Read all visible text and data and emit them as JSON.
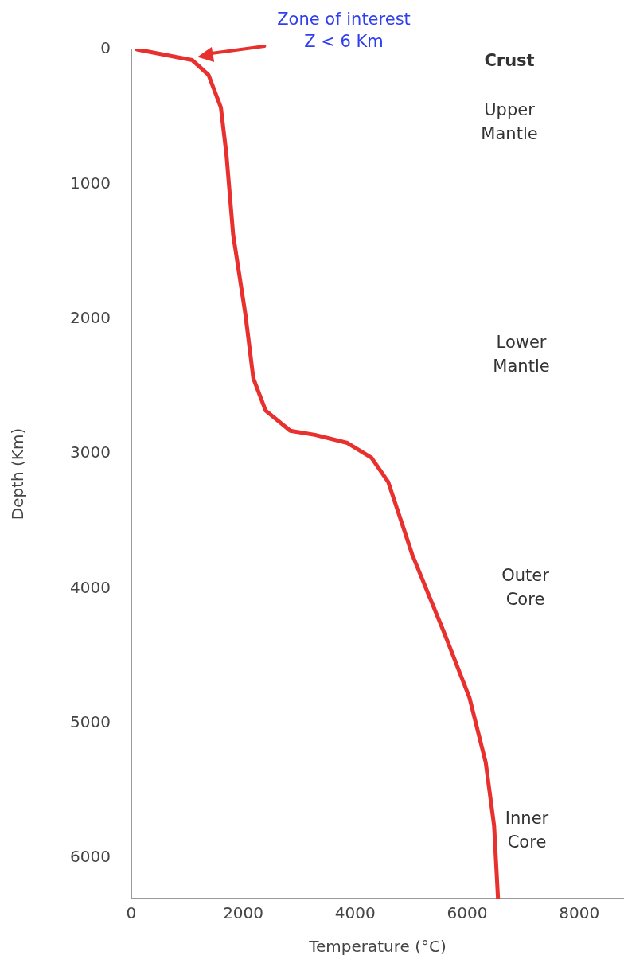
{
  "chart_data": {
    "type": "line",
    "xlabel": "Temperature (°C)",
    "ylabel": "Depth (Km)",
    "x": [
      100,
      1090,
      1380,
      1600,
      1700,
      1820,
      2040,
      2180,
      2400,
      2840,
      3280,
      3860,
      4290,
      4590,
      5020,
      5600,
      6040,
      6330,
      6480,
      6550
    ],
    "series": [
      {
        "color": "#e8302e",
        "values": [
          0,
          80,
          190,
          430,
          780,
          1375,
          1970,
          2440,
          2680,
          2830,
          2860,
          2920,
          3030,
          3210,
          3750,
          4340,
          4810,
          5290,
          5760,
          6300
        ]
      }
    ],
    "xlim": [
      0,
      8800
    ],
    "xticks": [
      0,
      2000,
      4000,
      6000,
      8000
    ],
    "ylim": [
      6300,
      0
    ],
    "yticks": [
      0,
      1000,
      2000,
      3000,
      4000,
      5000,
      6000
    ],
    "annotations": [
      "Zone of interest\nZ < 6 Km",
      "Crust",
      "Upper\nMantle",
      "Lower\nMantle",
      "Outer\nCore",
      "Inner\nCore"
    ],
    "grid": false,
    "legend": false,
    "marker": "none",
    "line_style": "solid"
  }
}
